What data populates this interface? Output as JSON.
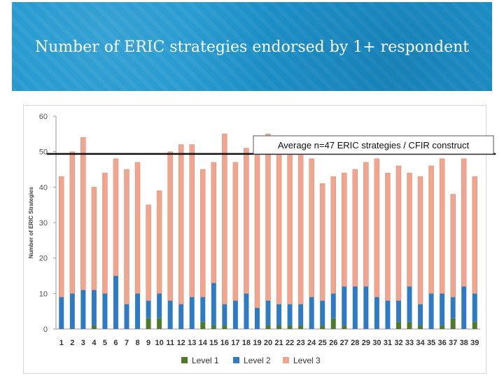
{
  "slide": {
    "title": "Number of ERIC strategies endorsed by 1+ respondent"
  },
  "chart_data": {
    "type": "bar",
    "stacked": true,
    "ylabel": "Number of ERIC Strategies",
    "xlabel": "",
    "ylim": [
      0,
      60
    ],
    "yticks": [
      0,
      10,
      20,
      30,
      40,
      50,
      60
    ],
    "grid": false,
    "legend_position": "bottom",
    "categories": [
      "1",
      "2",
      "3",
      "4",
      "5",
      "6",
      "7",
      "8",
      "9",
      "10",
      "11",
      "12",
      "13",
      "14",
      "15",
      "16",
      "17",
      "18",
      "19",
      "20",
      "21",
      "22",
      "23",
      "24",
      "25",
      "26",
      "27",
      "28",
      "29",
      "30",
      "31",
      "32",
      "33",
      "34",
      "35",
      "36",
      "37",
      "38",
      "39"
    ],
    "series": [
      {
        "name": "Level 1",
        "color": "#4e7a2e",
        "values": [
          0,
          0,
          0,
          1,
          0,
          0,
          0,
          0,
          3,
          3,
          0,
          0,
          0,
          2,
          1,
          1,
          0,
          0,
          0,
          1,
          1,
          1,
          1,
          0,
          1,
          3,
          1,
          0,
          0,
          0,
          0,
          2,
          2,
          1,
          0,
          1,
          3,
          0,
          2
        ]
      },
      {
        "name": "Level 2",
        "color": "#2e7bc4",
        "values": [
          9,
          10,
          11,
          10,
          10,
          15,
          7,
          10,
          5,
          7,
          8,
          7,
          9,
          7,
          12,
          6,
          8,
          10,
          6,
          7,
          6,
          6,
          6,
          9,
          7,
          7,
          11,
          12,
          12,
          9,
          8,
          6,
          10,
          6,
          10,
          9,
          6,
          12,
          8
        ]
      },
      {
        "name": "Level 3",
        "color": "#f0a58f",
        "values": [
          34,
          40,
          43,
          29,
          34,
          33,
          38,
          37,
          27,
          29,
          42,
          45,
          43,
          36,
          34,
          48,
          39,
          41,
          43,
          47,
          42,
          42,
          42,
          39,
          33,
          33,
          32,
          33,
          35,
          39,
          36,
          38,
          32,
          36,
          36,
          38,
          29,
          36,
          33
        ]
      }
    ],
    "totals": [
      43,
      50,
      54,
      40,
      44,
      48,
      45,
      47,
      35,
      39,
      50,
      52,
      52,
      45,
      47,
      55,
      47,
      51,
      49,
      55,
      49,
      49,
      49,
      48,
      41,
      43,
      44,
      45,
      47,
      48,
      44,
      46,
      44,
      43,
      46,
      48,
      38,
      48,
      43
    ],
    "average_line": {
      "value": 47,
      "label": "Average n=47 ERIC strategies / CFIR construct"
    }
  }
}
